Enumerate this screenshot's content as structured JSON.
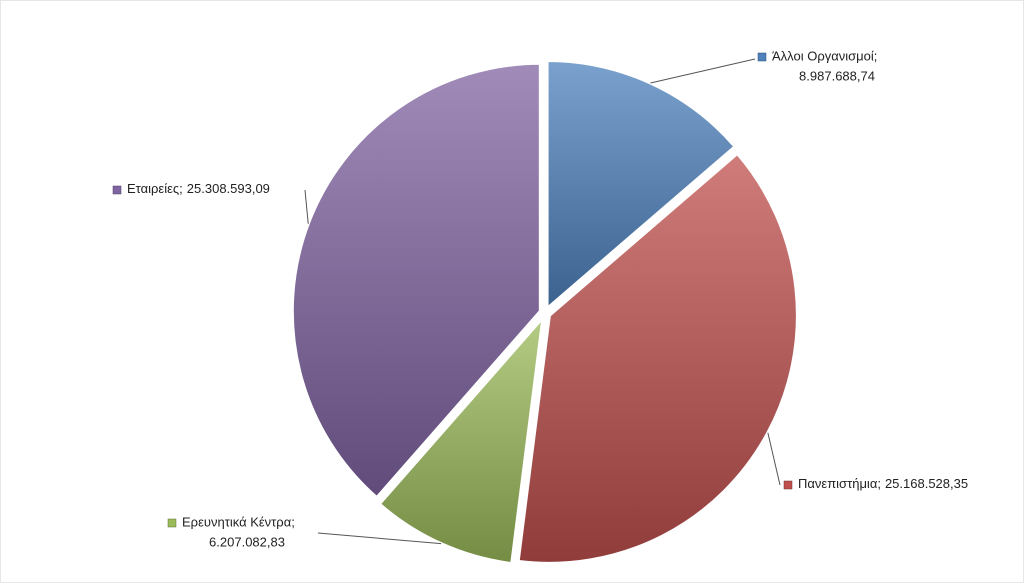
{
  "chart_data": {
    "type": "pie",
    "categories": [
      "Άλλοι Οργανισμοί;",
      "Πανεπιστήμια;",
      "Ερευνητικά Κέντρα;",
      "Εταιρείες;"
    ],
    "values": [
      8987688.74,
      25168528.35,
      6207082.83,
      25308593.09
    ],
    "value_labels": [
      "8.987.688,74",
      "25.168.528,35",
      "6.207.082,83",
      "25.308.593,09"
    ],
    "colors": [
      "#4f81bd",
      "#c0504d",
      "#9bbb59",
      "#8064a2"
    ]
  }
}
